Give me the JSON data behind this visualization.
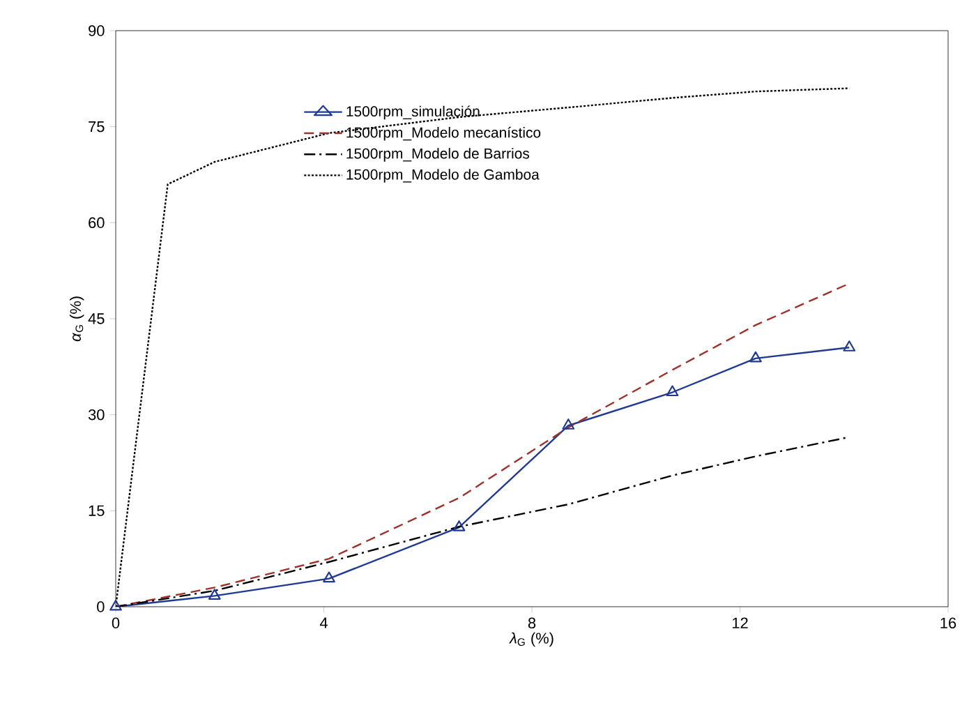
{
  "chart_data": {
    "type": "line",
    "xlabel": "*λ*$_{G}$ (%)",
    "ylabel": "*α*$_{G}$ (%)",
    "xlim": [
      0,
      16
    ],
    "ylim": [
      0,
      90
    ],
    "xticks": [
      0,
      4,
      8,
      12,
      16
    ],
    "yticks": [
      0,
      15,
      30,
      45,
      60,
      75,
      90
    ],
    "grid": false,
    "legend": "top",
    "series": [
      {
        "name": "1500rpm_simulación",
        "color": "#1f3a93",
        "marker": "triangle",
        "line_style": "solid",
        "x": [
          0,
          1.9,
          4.1,
          6.6,
          8.7,
          10.7,
          12.3,
          14.1
        ],
        "values": [
          0,
          1.7,
          4.4,
          12.4,
          28.3,
          33.5,
          38.8,
          40.5
        ]
      },
      {
        "name": "1500rpm_Modelo mecanístico",
        "color": "#a0302a",
        "marker": "none",
        "line_style": "dashed",
        "x": [
          0,
          1.9,
          4.1,
          6.6,
          8.7,
          10.7,
          12.3,
          14.1
        ],
        "values": [
          0,
          3,
          7.5,
          17,
          28,
          37,
          44,
          50.5
        ]
      },
      {
        "name": "1500rpm_Modelo de Barrios",
        "color": "#000000",
        "marker": "none",
        "line_style": "dashdot",
        "x": [
          0,
          1.9,
          4.1,
          6.6,
          8.7,
          10.7,
          12.3,
          14.1
        ],
        "values": [
          0,
          2.5,
          7,
          12.5,
          16,
          20.5,
          23.5,
          26.5
        ]
      },
      {
        "name": "1500rpm_Modelo de Gamboa",
        "color": "#000000",
        "marker": "none",
        "line_style": "dotted",
        "x": [
          0,
          1,
          1.9,
          4.1,
          6.6,
          8.7,
          10.7,
          12.3,
          14.1
        ],
        "values": [
          0,
          66,
          69.5,
          74,
          76.5,
          78,
          79.5,
          80.5,
          81
        ]
      }
    ]
  }
}
